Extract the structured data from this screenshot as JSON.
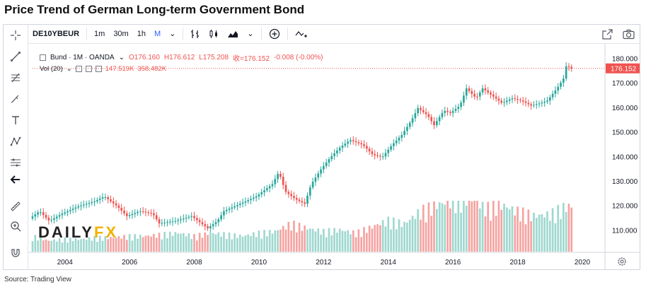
{
  "title": "Price Trend of German Long-term Government Bond",
  "source": "Source: Trading View",
  "watermark": {
    "part1": "DAILY",
    "part2": "FX"
  },
  "toolbar": {
    "symbol": "DE10YBEUR",
    "intervals": [
      "1m",
      "30m",
      "1h",
      "M"
    ],
    "dropdown_glyph": "⌄"
  },
  "left_tools": [
    "crosshair-icon",
    "trendline-icon",
    "fib-icon",
    "brush-icon",
    "text-icon",
    "pattern-icon",
    "measure-icon",
    "back-arrow-icon",
    "ruler-icon",
    "zoom-icon",
    "magnet-icon"
  ],
  "legend": {
    "name": "Bund · 1M · OANDA",
    "o": "O176.160",
    "h": "H176.612",
    "l": "L175.208",
    "c": "收=176.152",
    "chg": "-0.008 (-0.00%)",
    "vol_label": "Vol (20)",
    "vol1": "147.519K",
    "vol2": "358.482K"
  },
  "last_price": "176.152",
  "colors": {
    "up": "#26a69a",
    "down": "#ef5350",
    "vol_up": "#9fd8cf",
    "vol_down": "#f5a3a1",
    "last": "#ef5350"
  },
  "chart_data": {
    "type": "line",
    "title": "Price Trend of German Long-term Government Bond",
    "xlabel": "",
    "ylabel": "",
    "x_ticks": [
      "2004",
      "2006",
      "2008",
      "2010",
      "2012",
      "2014",
      "2016",
      "2018",
      "2020"
    ],
    "y_ticks": [
      110,
      120,
      130,
      140,
      150,
      160,
      170,
      180
    ],
    "ylim": [
      101.5,
      185
    ],
    "x_range": [
      2003.0,
      2020.7
    ],
    "series": [
      {
        "x": [
          2003.0,
          2003.3,
          2003.6,
          2004.0,
          2004.5,
          2005.0,
          2005.3,
          2005.7,
          2006.0,
          2006.4,
          2006.8,
          2007.0,
          2007.5,
          2008.0,
          2008.5,
          2008.8,
          2009.0,
          2009.5,
          2010.0,
          2010.5,
          2010.7,
          2010.9,
          2011.2,
          2011.5,
          2011.7,
          2012.0,
          2012.3,
          2012.6,
          2012.9,
          2013.3,
          2013.6,
          2013.9,
          2014.2,
          2014.5,
          2014.8,
          2015.0,
          2015.3,
          2015.5,
          2015.8,
          2016.0,
          2016.3,
          2016.5,
          2016.8,
          2017.0,
          2017.3,
          2017.6,
          2017.9,
          2018.2,
          2018.5,
          2018.8,
          2019.0,
          2019.3,
          2019.5,
          2019.6,
          2019.7
        ],
        "values": [
          115,
          118,
          114,
          117,
          120,
          122,
          124,
          120,
          116,
          118,
          117,
          113,
          114,
          116,
          111,
          114,
          118,
          121,
          124,
          129,
          134,
          126,
          123,
          121,
          129,
          135,
          140,
          144,
          147,
          145,
          141,
          140,
          145,
          149,
          155,
          160,
          157,
          153,
          159,
          158,
          161,
          168,
          164,
          168,
          165,
          162,
          164,
          163,
          161,
          162,
          163,
          168,
          172,
          178,
          176.152
        ]
      }
    ],
    "volume": [
      {
        "x": [
          2003.0,
          2003.5,
          2004.0,
          2004.5,
          2005.0,
          2005.5,
          2006.0,
          2006.5,
          2007.0,
          2007.5,
          2008.0,
          2008.5,
          2009.0,
          2009.5,
          2010.0,
          2010.5,
          2011.0,
          2011.5,
          2012.0,
          2012.5,
          2013.0,
          2013.5,
          2014.0,
          2014.5,
          2015.0,
          2015.5,
          2016.0,
          2016.5,
          2017.0,
          2017.5,
          2018.0,
          2018.5,
          2019.0,
          2019.5
        ],
        "values": [
          10,
          7,
          8,
          8,
          9,
          9,
          10,
          10,
          11,
          12,
          10,
          12,
          11,
          10,
          12,
          13,
          18,
          15,
          13,
          14,
          12,
          16,
          20,
          18,
          26,
          30,
          33,
          35,
          28,
          30,
          26,
          23,
          24,
          29
        ]
      }
    ]
  }
}
